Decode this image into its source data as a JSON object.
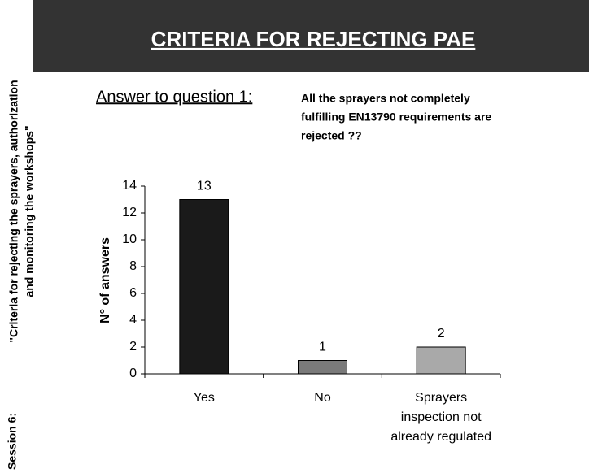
{
  "sidebar": {
    "session": "Session 6:",
    "topic_lines": [
      "\"Criteria for rejecting the sprayers, authorization",
      "and monitoring the workshops\""
    ]
  },
  "header": {
    "title": "CRITERIA FOR REJECTING PAE"
  },
  "chart_data": {
    "type": "bar",
    "subtitle": "Answer to question  1:",
    "question_lines": [
      "All the sprayers not completely",
      "fulfilling EN13790 requirements are",
      "rejected ??"
    ],
    "ylabel": "N° of answers",
    "categories": [
      "Yes",
      "No",
      "Sprayers inspection not already regulated"
    ],
    "values": [
      13,
      1,
      2
    ],
    "colors": [
      "#1a1a1a",
      "#7a7a7a",
      "#a9a9a9"
    ],
    "ylim": [
      0,
      14
    ],
    "yticks": [
      0,
      2,
      4,
      6,
      8,
      10,
      12,
      14
    ]
  }
}
